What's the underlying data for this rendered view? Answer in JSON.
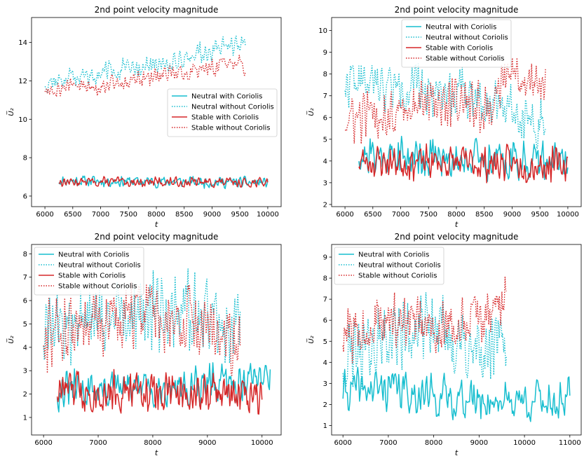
{
  "figure": {
    "background": "#ffffff"
  },
  "colors": {
    "neutral": "#17becf",
    "stable": "#d62728"
  },
  "chart_data": [
    {
      "type": "line",
      "title": "2nd point velocity magnitude",
      "xlabel": "t",
      "ylabel": "U̅₂",
      "xlim": [
        5760,
        10240
      ],
      "ylim": [
        5.45,
        15.3
      ],
      "xticks": [
        6000,
        6500,
        7000,
        7500,
        8000,
        8500,
        9000,
        9500,
        10000
      ],
      "xtick_labels": [
        "6000",
        "6500",
        "7000",
        "7500",
        "8000",
        "8500",
        "9000",
        "9500",
        "10000"
      ],
      "yticks": [
        6,
        8,
        10,
        12,
        14
      ],
      "ytick_labels": [
        "6",
        "8",
        "10",
        "12",
        "14"
      ],
      "legend_position": "center-right",
      "series": [
        {
          "name": "Neutral with Coriolis",
          "color": "#17becf",
          "style": "solid",
          "seed": 11,
          "seg": 15,
          "pts": [
            [
              6250,
              6.8
            ],
            [
              10000,
              6.7
            ]
          ],
          "noise": 0.35
        },
        {
          "name": "Neutral without Coriolis",
          "color": "#17becf",
          "style": "dotted",
          "seed": 12,
          "seg": 12,
          "pts": [
            [
              6000,
              11.9
            ],
            [
              7000,
              12.4
            ],
            [
              8000,
              12.8
            ],
            [
              9000,
              13.6
            ],
            [
              9600,
              14.0
            ]
          ],
          "noise": 0.65
        },
        {
          "name": "Stable with Coriolis",
          "color": "#d62728",
          "style": "solid",
          "seed": 13,
          "seg": 15,
          "pts": [
            [
              6250,
              6.75
            ],
            [
              10000,
              6.7
            ]
          ],
          "noise": 0.3
        },
        {
          "name": "Stable without Coriolis",
          "color": "#d62728",
          "style": "dotted",
          "seed": 14,
          "seg": 12,
          "pts": [
            [
              6000,
              11.6
            ],
            [
              7000,
              11.8
            ],
            [
              8000,
              12.2
            ],
            [
              9000,
              12.7
            ],
            [
              9600,
              12.8
            ]
          ],
          "noise": 0.6
        }
      ]
    },
    {
      "type": "line",
      "title": "2nd point velocity magnitude",
      "xlabel": "t",
      "ylabel": "U̅₂",
      "xlim": [
        5760,
        10240
      ],
      "ylim": [
        1.9,
        10.6
      ],
      "xticks": [
        6000,
        6500,
        7000,
        7500,
        8000,
        8500,
        9000,
        9500,
        10000
      ],
      "xtick_labels": [
        "6000",
        "6500",
        "7000",
        "7500",
        "8000",
        "8500",
        "9000",
        "9500",
        "10000"
      ],
      "yticks": [
        2,
        3,
        4,
        5,
        6,
        7,
        8,
        9,
        10
      ],
      "ytick_labels": [
        "2",
        "3",
        "4",
        "5",
        "6",
        "7",
        "8",
        "9",
        "10"
      ],
      "legend_position": "top-center",
      "series": [
        {
          "name": "Neutral with Coriolis",
          "color": "#17becf",
          "style": "solid",
          "seed": 21,
          "seg": 15,
          "pts": [
            [
              6250,
              4.3
            ],
            [
              10000,
              4.0
            ]
          ],
          "noise": 1.1
        },
        {
          "name": "Neutral without Coriolis",
          "color": "#17becf",
          "style": "dotted",
          "seed": 22,
          "seg": 12,
          "pts": [
            [
              6000,
              7.6
            ],
            [
              8000,
              7.2
            ],
            [
              9000,
              6.6
            ],
            [
              9600,
              5.4
            ]
          ],
          "noise": 1.3
        },
        {
          "name": "Stable with Coriolis",
          "color": "#d62728",
          "style": "solid",
          "seed": 23,
          "seg": 15,
          "pts": [
            [
              6250,
              4.0
            ],
            [
              10000,
              3.8
            ]
          ],
          "noise": 0.95
        },
        {
          "name": "Stable without Coriolis",
          "color": "#d62728",
          "style": "dotted",
          "seed": 24,
          "seg": 12,
          "pts": [
            [
              6000,
              5.8
            ],
            [
              7000,
              6.4
            ],
            [
              8000,
              6.9
            ],
            [
              8500,
              6.3
            ],
            [
              9000,
              8.0
            ],
            [
              9600,
              7.3
            ]
          ],
          "noise": 1.4
        }
      ]
    },
    {
      "type": "line",
      "title": "2nd point velocity magnitude",
      "xlabel": "t",
      "ylabel": "U̅₂",
      "xlim": [
        5780,
        10350
      ],
      "ylim": [
        0.25,
        8.4
      ],
      "xticks": [
        6000,
        7000,
        8000,
        9000,
        10000
      ],
      "xtick_labels": [
        "6000",
        "7000",
        "8000",
        "9000",
        "10000"
      ],
      "yticks": [
        1,
        2,
        3,
        4,
        5,
        6,
        7,
        8
      ],
      "ytick_labels": [
        "1",
        "2",
        "3",
        "4",
        "5",
        "6",
        "7",
        "8"
      ],
      "legend_position": "top-left",
      "series": [
        {
          "name": "Neutral with Coriolis",
          "color": "#17becf",
          "style": "solid",
          "seed": 31,
          "seg": 15,
          "pts": [
            [
              6250,
              2.1
            ],
            [
              8000,
              2.3
            ],
            [
              9500,
              2.4
            ],
            [
              10150,
              3.0
            ]
          ],
          "noise": 1.0
        },
        {
          "name": "Neutral without Coriolis",
          "color": "#17becf",
          "style": "dotted",
          "seed": 32,
          "seg": 12,
          "pts": [
            [
              6000,
              4.6
            ],
            [
              7500,
              5.6
            ],
            [
              8500,
              5.6
            ],
            [
              9600,
              4.8
            ]
          ],
          "noise": 2.0
        },
        {
          "name": "Stable with Coriolis",
          "color": "#d62728",
          "style": "solid",
          "seed": 33,
          "seg": 15,
          "pts": [
            [
              6250,
              2.2
            ],
            [
              8000,
              2.1
            ],
            [
              9500,
              2.0
            ],
            [
              10000,
              2.2
            ]
          ],
          "noise": 1.1
        },
        {
          "name": "Stable without Coriolis",
          "color": "#d62728",
          "style": "dotted",
          "seed": 34,
          "seg": 12,
          "pts": [
            [
              6000,
              4.6
            ],
            [
              7000,
              5.0
            ],
            [
              8000,
              5.6
            ],
            [
              9000,
              4.8
            ],
            [
              9600,
              4.2
            ]
          ],
          "noise": 1.9
        }
      ]
    },
    {
      "type": "line",
      "title": "2nd point velocity magnitude",
      "xlabel": "t",
      "ylabel": "U̅₂",
      "xlim": [
        5750,
        11250
      ],
      "ylim": [
        0.55,
        9.6
      ],
      "xticks": [
        6000,
        7000,
        8000,
        9000,
        10000,
        11000
      ],
      "xtick_labels": [
        "6000",
        "7000",
        "8000",
        "9000",
        "10000",
        "11000"
      ],
      "yticks": [
        1,
        2,
        3,
        4,
        5,
        6,
        7,
        8,
        9
      ],
      "ytick_labels": [
        "1",
        "2",
        "3",
        "4",
        "5",
        "6",
        "7",
        "8",
        "9"
      ],
      "legend_position": "top-left",
      "series": [
        {
          "name": "Neutral with Coriolis",
          "color": "#17becf",
          "style": "solid",
          "seed": 41,
          "seg": 15,
          "pts": [
            [
              6000,
              2.6
            ],
            [
              7000,
              2.8
            ],
            [
              8000,
              2.4
            ],
            [
              9000,
              2.2
            ],
            [
              11000,
              2.2
            ]
          ],
          "noise": 1.2
        },
        {
          "name": "Neutral without Coriolis",
          "color": "#17becf",
          "style": "dotted",
          "seed": 42,
          "seg": 12,
          "pts": [
            [
              6000,
              4.0
            ],
            [
              7000,
              5.2
            ],
            [
              8000,
              5.6
            ],
            [
              9000,
              4.2
            ],
            [
              9600,
              5.0
            ]
          ],
          "noise": 1.9
        },
        {
          "name": "Stable without Coriolis",
          "color": "#d62728",
          "style": "dotted",
          "seed": 44,
          "seg": 12,
          "pts": [
            [
              6000,
              5.2
            ],
            [
              7000,
              6.0
            ],
            [
              8000,
              5.5
            ],
            [
              9000,
              6.0
            ],
            [
              9600,
              7.0
            ]
          ],
          "noise": 1.5
        }
      ]
    }
  ]
}
